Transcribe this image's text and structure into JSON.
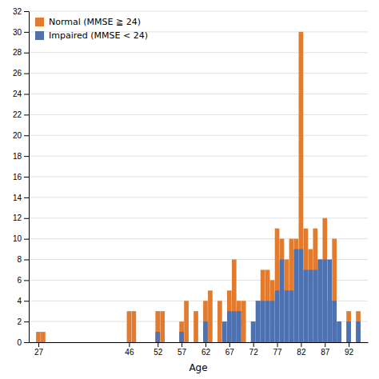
{
  "chart_data": {
    "type": "bar",
    "x": [
      27,
      28,
      29,
      30,
      31,
      32,
      33,
      34,
      35,
      36,
      37,
      38,
      39,
      40,
      41,
      42,
      43,
      44,
      45,
      46,
      47,
      48,
      49,
      50,
      51,
      52,
      53,
      54,
      55,
      56,
      57,
      58,
      59,
      60,
      61,
      62,
      63,
      64,
      65,
      66,
      67,
      68,
      69,
      70,
      71,
      72,
      73,
      74,
      75,
      76,
      77,
      78,
      79,
      80,
      81,
      82,
      83,
      84,
      85,
      86,
      87,
      88,
      89,
      90,
      91,
      92,
      93,
      94
    ],
    "series": [
      {
        "name": "Normal (MMSE ≧ 24)",
        "color": "#E07B30",
        "values": [
          1,
          1,
          0,
          0,
          0,
          0,
          0,
          0,
          0,
          0,
          0,
          0,
          0,
          0,
          0,
          0,
          0,
          0,
          0,
          3,
          3,
          0,
          0,
          0,
          0,
          3,
          3,
          0,
          0,
          0,
          2,
          4,
          0,
          3,
          0,
          4,
          5,
          0,
          4,
          0,
          5,
          8,
          4,
          4,
          0,
          2,
          4,
          7,
          7,
          6,
          11,
          10,
          8,
          10,
          10,
          30,
          11,
          9,
          11,
          8,
          12,
          4,
          10,
          2,
          0,
          3,
          0,
          3
        ]
      },
      {
        "name": "Impaired (MMSE < 24)",
        "color": "#4E72B0",
        "values": [
          0,
          0,
          0,
          0,
          0,
          0,
          0,
          0,
          0,
          0,
          0,
          0,
          0,
          0,
          0,
          0,
          0,
          0,
          0,
          0,
          0,
          0,
          0,
          0,
          0,
          1,
          0,
          0,
          0,
          0,
          1,
          0,
          0,
          0,
          0,
          2,
          0,
          0,
          0,
          2,
          3,
          3,
          3,
          0,
          0,
          2,
          4,
          4,
          4,
          4,
          5,
          8,
          5,
          5,
          9,
          9,
          7,
          7,
          7,
          8,
          8,
          8,
          4,
          2,
          0,
          2,
          0,
          2
        ]
      }
    ],
    "x_label": "Age",
    "xlim": [
      25,
      96
    ],
    "xticks": [
      27,
      46,
      52,
      57,
      62,
      67,
      72,
      77,
      82,
      87,
      92
    ],
    "ylim": [
      0,
      32
    ],
    "yticks": [
      0,
      2,
      4,
      6,
      8,
      10,
      12,
      14,
      16,
      18,
      20,
      22,
      24,
      26,
      28,
      30,
      32
    ],
    "grid": true,
    "legend": "upper left",
    "stacked": false
  }
}
